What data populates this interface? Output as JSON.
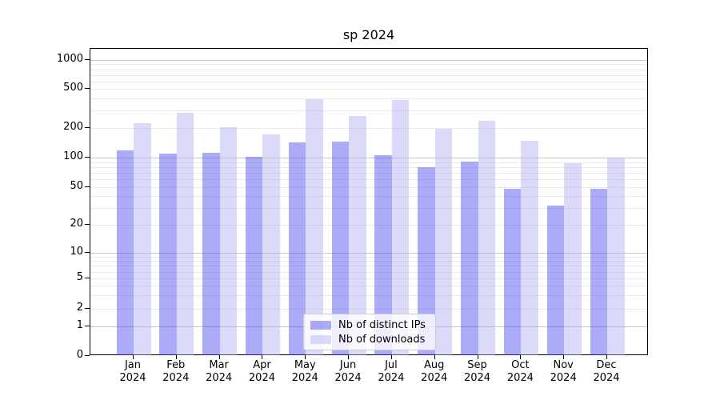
{
  "title": "sp 2024",
  "chart_data": {
    "type": "bar",
    "title": "sp 2024",
    "categories": [
      "Jan 2024",
      "Feb 2024",
      "Mar 2024",
      "Apr 2024",
      "May 2024",
      "Jun 2024",
      "Jul 2024",
      "Aug 2024",
      "Sep 2024",
      "Oct 2024",
      "Nov 2024",
      "Dec 2024"
    ],
    "series": [
      {
        "name": "Nb of distinct IPs",
        "key": "distinct-ips",
        "fill": "rgba(68,68,238,0.45)",
        "color_seen": "#aaaaf4",
        "values": [
          118,
          110,
          112,
          101,
          142,
          145,
          105,
          80,
          91,
          48,
          32,
          48
        ]
      },
      {
        "name": "Nb of downloads",
        "key": "downloads",
        "fill": "rgba(176,176,242,0.45)",
        "color_seen": "#dadaf9",
        "values": [
          225,
          285,
          203,
          172,
          390,
          265,
          385,
          195,
          235,
          147,
          87,
          100
        ]
      }
    ],
    "xlabel": "",
    "ylabel": "",
    "yscale": "symlog",
    "yticks": [
      1000,
      500,
      200,
      100,
      50,
      20,
      10,
      5,
      2,
      1,
      0
    ],
    "ylim": [
      0,
      1400
    ],
    "grid": "both-major-and-minor",
    "legend_position": "lower-center",
    "gridline_major_color": "#c6c6c6",
    "gridline_minor_color": "#ebebeb"
  }
}
